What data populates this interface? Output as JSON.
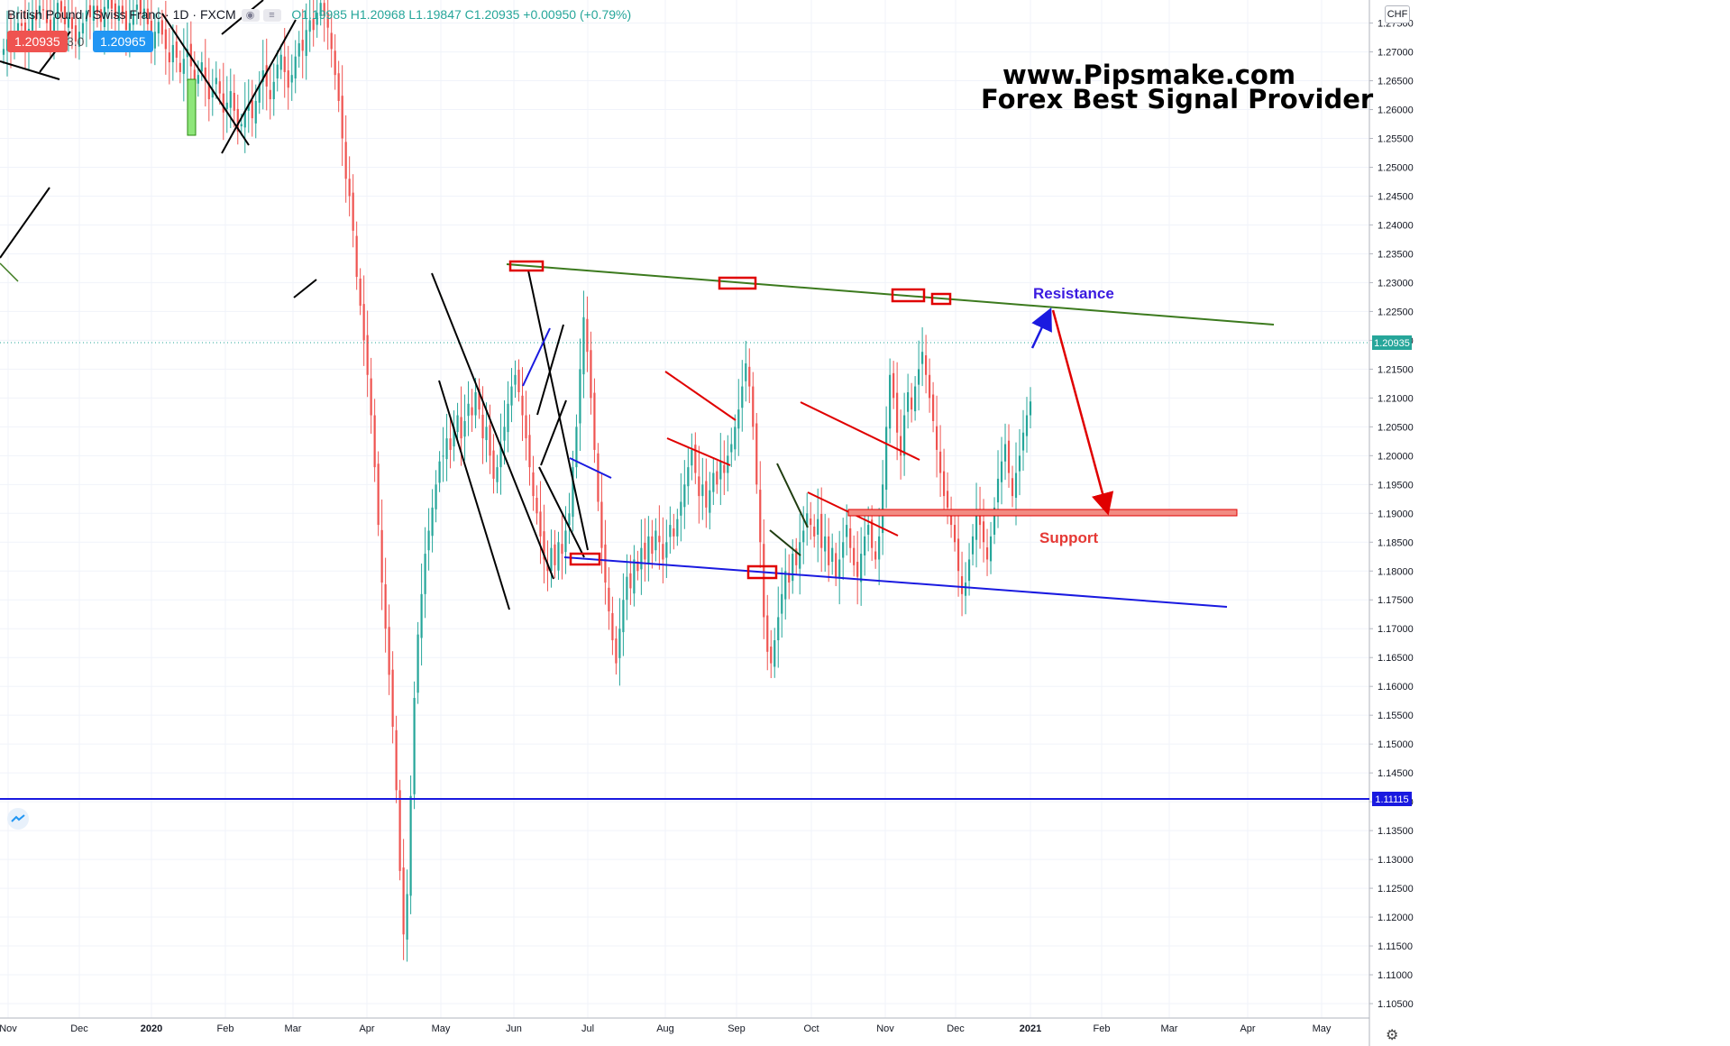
{
  "header": {
    "symbol": "British Pound / Swiss Franc · 1D · FXCM",
    "ohlc": "O1.19985 H1.20968 L1.19847 C1.20935 +0.00950 (+0.79%)",
    "sell_price": "1.20935",
    "spread": "3.0",
    "buy_price": "1.20965",
    "currency": "CHF"
  },
  "annotations": {
    "watermark_line1": "www.Pipsmake.com",
    "watermark_line2": "Forex Best Signal Provider",
    "resistance_label": "Resistance",
    "support_label": "Support"
  },
  "colors": {
    "up": "#26a69a",
    "down": "#ef5350",
    "resistance_line": "#3c7a1e",
    "support_line": "#1a1ae0",
    "marker": "#e00000",
    "support_zone": "#f28b82"
  },
  "icons": {
    "logo": "tradingview-logo-icon",
    "settings": "gear-icon"
  },
  "chart_data": {
    "type": "candlestick",
    "ylim": [
      1.1025,
      1.279
    ],
    "yticks": [
      "1.10500",
      "1.11000",
      "1.11500",
      "1.12000",
      "1.12500",
      "1.13000",
      "1.13500",
      "1.14000",
      "1.14500",
      "1.15000",
      "1.15500",
      "1.16000",
      "1.16500",
      "1.17000",
      "1.17500",
      "1.18000",
      "1.18500",
      "1.19000",
      "1.19500",
      "1.20000",
      "1.20500",
      "1.21000",
      "1.21500",
      "1.22000",
      "1.22500",
      "1.23000",
      "1.23500",
      "1.24000",
      "1.24500",
      "1.25000",
      "1.25500",
      "1.26000",
      "1.26500",
      "1.27000",
      "1.27500"
    ],
    "xticks": [
      "Nov",
      "Dec",
      "2020",
      "Feb",
      "Mar",
      "Apr",
      "May",
      "Jun",
      "Jul",
      "Aug",
      "Sep",
      "Oct",
      "Nov",
      "Dec",
      "2021",
      "Feb",
      "Mar",
      "Apr",
      "May"
    ],
    "last_price": "1.20935",
    "horizontal_level": "1.11115",
    "close": [
      1.2705,
      1.2722,
      1.271,
      1.2735,
      1.275,
      1.2745,
      1.2718,
      1.274,
      1.2765,
      1.2755,
      1.278,
      1.2772,
      1.275,
      1.2728,
      1.276,
      1.2785,
      1.277,
      1.2748,
      1.276,
      1.274,
      1.2718,
      1.2735,
      1.275,
      1.2772,
      1.276,
      1.278,
      1.2768,
      1.2752,
      1.2778,
      1.279,
      1.2775,
      1.276,
      1.278,
      1.2765,
      1.2738,
      1.275,
      1.277,
      1.2782,
      1.2765,
      1.2775,
      1.2748,
      1.2715,
      1.2735,
      1.2752,
      1.273,
      1.2705,
      1.2682,
      1.2712,
      1.269,
      1.2665,
      1.2688,
      1.2705,
      1.2675,
      1.2645,
      1.266,
      1.2682,
      1.265,
      1.2618,
      1.2635,
      1.2655,
      1.2628,
      1.2595,
      1.2612,
      1.2632,
      1.2598,
      1.2562,
      1.2575,
      1.2598,
      1.261,
      1.2585,
      1.2615,
      1.2645,
      1.2668,
      1.264,
      1.2618,
      1.2648,
      1.2678,
      1.2695,
      1.2665,
      1.2638,
      1.266,
      1.2692,
      1.2715,
      1.2702,
      1.2738,
      1.2755,
      1.2738,
      1.2768,
      1.2785,
      1.2762,
      1.2742,
      1.2705,
      1.266,
      1.2615,
      1.255,
      1.248,
      1.245,
      1.239,
      1.231,
      1.226,
      1.22,
      1.214,
      1.207,
      1.198,
      1.188,
      1.178,
      1.17,
      1.162,
      1.153,
      1.142,
      1.128,
      1.117,
      1.124,
      1.141,
      1.158,
      1.169,
      1.176,
      1.183,
      1.187,
      1.191,
      1.195,
      1.199,
      1.2,
      1.203,
      1.201,
      1.205,
      1.207,
      1.203,
      1.206,
      1.209,
      1.207,
      1.211,
      1.208,
      1.203,
      1.205,
      1.2,
      1.196,
      1.198,
      1.202,
      1.205,
      1.209,
      1.212,
      1.214,
      1.211,
      1.207,
      1.203,
      1.198,
      1.193,
      1.19,
      1.186,
      1.182,
      1.18,
      1.184,
      1.181,
      1.185,
      1.183,
      1.187,
      1.19,
      1.198,
      1.205,
      1.215,
      1.224,
      1.218,
      1.21,
      1.201,
      1.192,
      1.184,
      1.178,
      1.173,
      1.168,
      1.164,
      1.17,
      1.175,
      1.179,
      1.177,
      1.182,
      1.18,
      1.184,
      1.182,
      1.186,
      1.183,
      1.187,
      1.185,
      1.182,
      1.185,
      1.188,
      1.186,
      1.189,
      1.192,
      1.195,
      1.198,
      1.201,
      1.197,
      1.193,
      1.195,
      1.191,
      1.194,
      1.197,
      1.195,
      1.199,
      1.197,
      1.2,
      1.202,
      1.205,
      1.208,
      1.212,
      1.216,
      1.212,
      1.205,
      1.195,
      1.185,
      1.172,
      1.166,
      1.164,
      1.168,
      1.172,
      1.176,
      1.18,
      1.178,
      1.183,
      1.181,
      1.185,
      1.187,
      1.19,
      1.188,
      1.186,
      1.189,
      1.184,
      1.186,
      1.181,
      1.184,
      1.179,
      1.182,
      1.185,
      1.188,
      1.184,
      1.181,
      1.179,
      1.183,
      1.186,
      1.188,
      1.184,
      1.182,
      1.186,
      1.195,
      1.205,
      1.214,
      1.21,
      1.204,
      1.2,
      1.207,
      1.211,
      1.208,
      1.212,
      1.215,
      1.218,
      1.214,
      1.21,
      1.206,
      1.201,
      1.197,
      1.193,
      1.191,
      1.188,
      1.185,
      1.18,
      1.176,
      1.178,
      1.182,
      1.186,
      1.19,
      1.188,
      1.185,
      1.182,
      1.186,
      1.191,
      1.196,
      1.199,
      1.202,
      1.197,
      1.193,
      1.197,
      1.2,
      1.204,
      1.207,
      1.2094
    ]
  }
}
